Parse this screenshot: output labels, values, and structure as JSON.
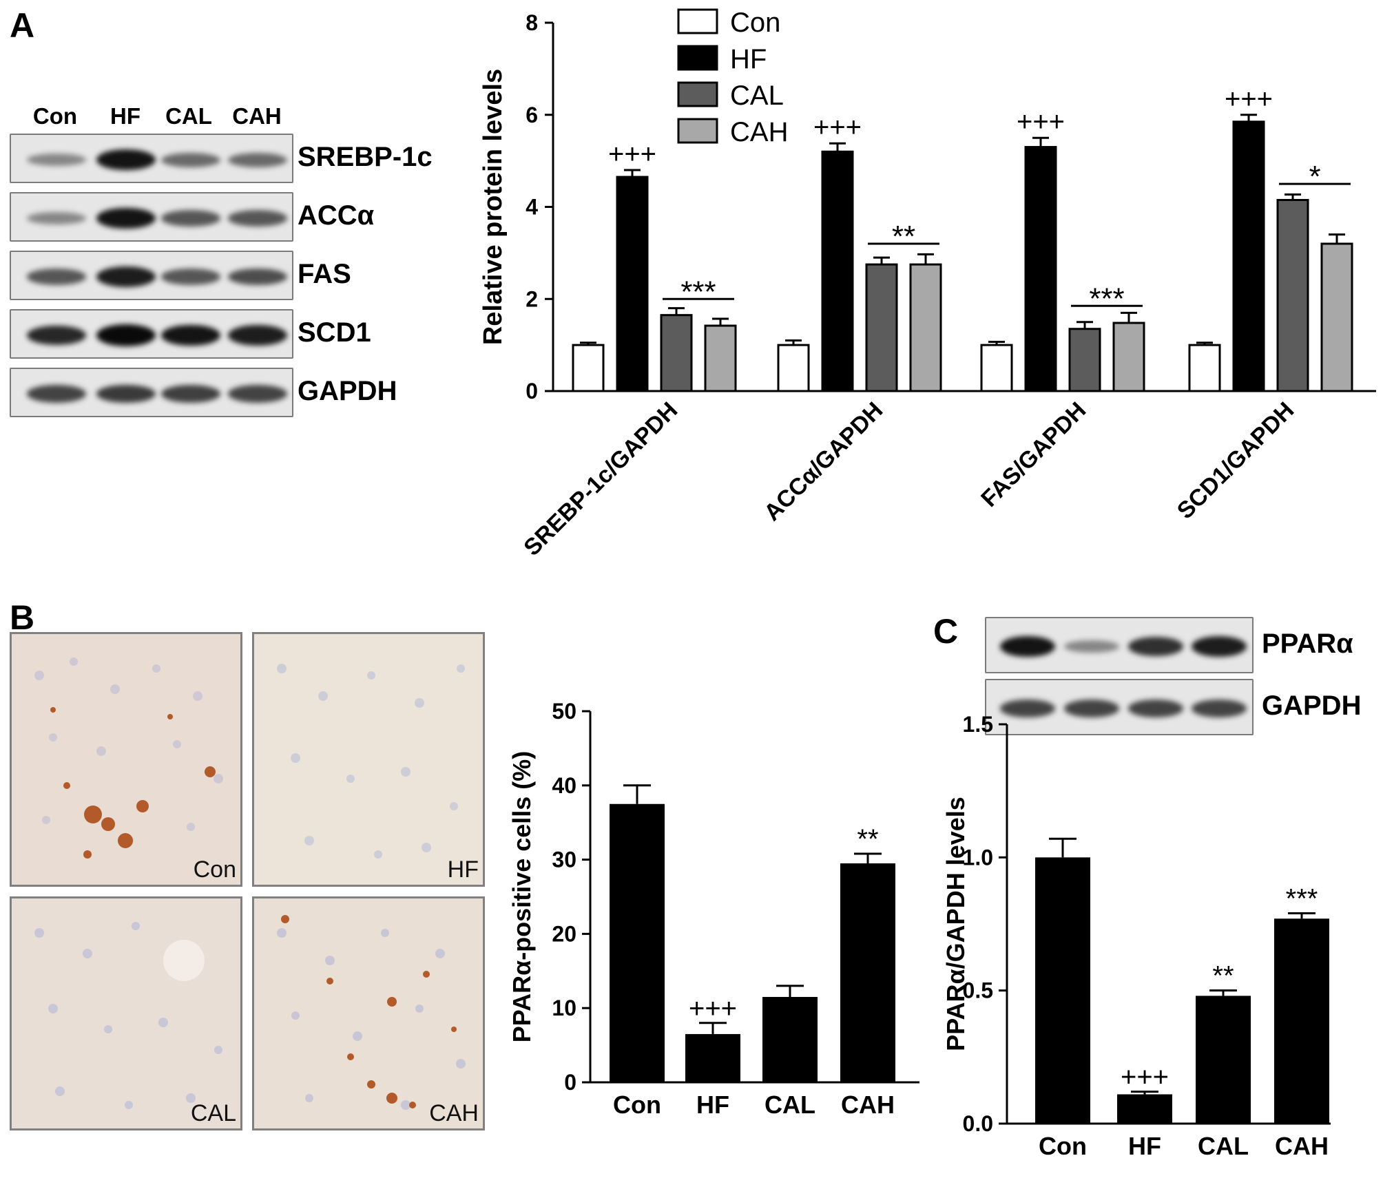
{
  "panel_A": {
    "letter": "A",
    "blot": {
      "lanes": [
        "Con",
        "HF",
        "CAL",
        "CAH"
      ],
      "rows": [
        {
          "label": "SREBP-1c",
          "intensity": [
            0.35,
            0.95,
            0.5,
            0.5
          ]
        },
        {
          "label": "ACCα",
          "intensity": [
            0.35,
            0.95,
            0.6,
            0.6
          ]
        },
        {
          "label": "FAS",
          "intensity": [
            0.6,
            0.9,
            0.6,
            0.65
          ]
        },
        {
          "label": "SCD1",
          "intensity": [
            0.85,
            1.0,
            0.95,
            0.9
          ]
        },
        {
          "label": "GAPDH",
          "intensity": [
            0.7,
            0.75,
            0.72,
            0.7
          ]
        }
      ]
    }
  },
  "panel_B": {
    "letter": "B",
    "ihc_labels": [
      "Con",
      "HF",
      "CAL",
      "CAH"
    ]
  },
  "panel_C": {
    "letter": "C",
    "blot": {
      "lanes": [
        "Con",
        "HF",
        "CAL",
        "CAH"
      ],
      "rows": [
        {
          "label": "PPARα",
          "intensity": [
            0.95,
            0.35,
            0.8,
            0.9
          ]
        },
        {
          "label": "GAPDH",
          "intensity": [
            0.7,
            0.7,
            0.7,
            0.7
          ]
        }
      ]
    }
  },
  "chart_data": [
    {
      "id": "A",
      "type": "bar",
      "ylabel": "Relative protein levels",
      "ylim": [
        0,
        8
      ],
      "yticks": [
        0,
        2,
        4,
        6,
        8
      ],
      "categories": [
        "SREBP-1c/GAPDH",
        "ACCα/GAPDH",
        "FAS/GAPDH",
        "SCD1/GAPDH"
      ],
      "legend_position": "top-center",
      "series": [
        {
          "name": "Con",
          "color": "#ffffff",
          "values": [
            1.0,
            1.0,
            1.0,
            1.0
          ],
          "errors": [
            0.05,
            0.1,
            0.07,
            0.05
          ]
        },
        {
          "name": "HF",
          "color": "#000000",
          "values": [
            4.65,
            5.2,
            5.3,
            5.85
          ],
          "errors": [
            0.15,
            0.18,
            0.2,
            0.15
          ]
        },
        {
          "name": "CAL",
          "color": "#5c5c5c",
          "values": [
            1.65,
            2.75,
            1.35,
            4.15
          ],
          "errors": [
            0.15,
            0.15,
            0.15,
            0.12
          ]
        },
        {
          "name": "CAH",
          "color": "#a8a8a8",
          "values": [
            1.42,
            2.75,
            1.48,
            3.2
          ],
          "errors": [
            0.15,
            0.22,
            0.22,
            0.2
          ]
        }
      ],
      "annotations": [
        {
          "category": 0,
          "series": 1,
          "text": "+++"
        },
        {
          "category": 1,
          "series": 1,
          "text": "+++"
        },
        {
          "category": 2,
          "series": 1,
          "text": "+++"
        },
        {
          "category": 3,
          "series": 1,
          "text": "+++"
        },
        {
          "category": 0,
          "text": "***",
          "bracket": [
            2,
            3
          ],
          "level": 2.0
        },
        {
          "category": 1,
          "text": "**",
          "bracket": [
            2,
            3
          ],
          "level": 3.2
        },
        {
          "category": 2,
          "text": "***",
          "bracket": [
            2,
            3
          ],
          "level": 1.85
        },
        {
          "category": 3,
          "text": "*",
          "bracket": [
            2,
            3
          ],
          "level": 4.5
        }
      ]
    },
    {
      "id": "B",
      "type": "bar",
      "ylabel": "PPARα-positive cells (%)",
      "ylim": [
        0,
        50
      ],
      "yticks": [
        0,
        10,
        20,
        30,
        40,
        50
      ],
      "categories": [
        "Con",
        "HF",
        "CAL",
        "CAH"
      ],
      "values": [
        37.5,
        6.5,
        11.5,
        29.5
      ],
      "errors": [
        2.5,
        1.5,
        1.5,
        1.3
      ],
      "color": "#000000",
      "annotations": [
        "",
        "+++",
        "",
        "**"
      ]
    },
    {
      "id": "C",
      "type": "bar",
      "ylabel": "PPARα/GAPDH levels",
      "ylim": [
        0,
        1.5
      ],
      "yticks": [
        "0.0",
        "0.5",
        "1.0",
        "1.5"
      ],
      "categories": [
        "Con",
        "HF",
        "CAL",
        "CAH"
      ],
      "values": [
        1.0,
        0.11,
        0.48,
        0.77
      ],
      "errors": [
        0.07,
        0.01,
        0.02,
        0.02
      ],
      "color": "#000000",
      "annotations": [
        "",
        "+++",
        "**",
        "***"
      ]
    }
  ]
}
